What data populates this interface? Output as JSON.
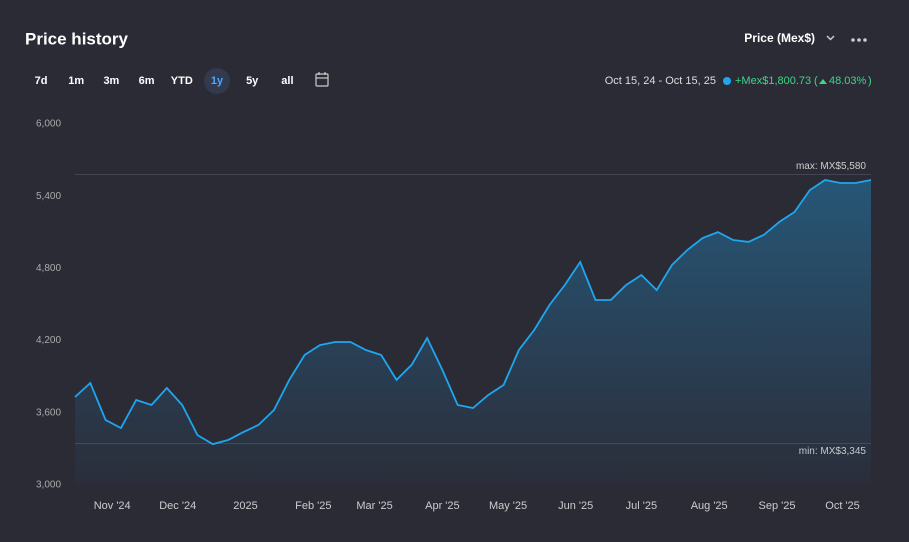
{
  "header": {
    "title": "Price history",
    "price_selector": "Price (Mex$)",
    "ranges": [
      "7d",
      "1m",
      "3m",
      "6m",
      "YTD",
      "1y",
      "5y",
      "all"
    ],
    "selected_range_index": 5,
    "date_range": "Oct 15, 24 - Oct 15, 25",
    "change": "+Mex$1,800.73",
    "change_percent": "48.03%"
  },
  "chart_data": {
    "type": "area",
    "color": "#1ea7f0",
    "x": [
      0,
      1,
      2,
      3,
      4,
      5,
      6,
      7,
      8,
      9,
      10,
      11,
      12,
      13,
      14,
      15,
      16,
      17,
      18,
      19,
      20,
      21,
      22,
      23,
      24,
      25,
      26,
      27,
      28,
      29,
      30,
      31,
      32,
      33,
      34,
      35,
      36,
      37,
      38,
      39,
      40,
      41,
      42,
      43,
      44,
      45,
      46,
      47,
      48,
      49,
      50,
      51,
      52
    ],
    "values": [
      3731,
      3848,
      3540,
      3474,
      3706,
      3665,
      3806,
      3665,
      3415,
      3340,
      3374,
      3440,
      3500,
      3623,
      3873,
      4080,
      4163,
      4188,
      4188,
      4122,
      4080,
      3873,
      4000,
      4222,
      3956,
      3665,
      3640,
      3748,
      3831,
      4122,
      4288,
      4496,
      4662,
      4853,
      4537,
      4537,
      4662,
      4745,
      4620,
      4828,
      4953,
      5053,
      5102,
      5036,
      5020,
      5078,
      5186,
      5269,
      5451,
      5535,
      5510,
      5510,
      5535
    ],
    "xlim": [
      0,
      52
    ],
    "xticks": [
      {
        "value": 2.43,
        "label": "Nov '24"
      },
      {
        "value": 6.71,
        "label": "Dec '24"
      },
      {
        "value": 11.14,
        "label": "2025"
      },
      {
        "value": 15.57,
        "label": "Feb '25"
      },
      {
        "value": 19.57,
        "label": "Mar '25"
      },
      {
        "value": 24,
        "label": "Apr '25"
      },
      {
        "value": 28.29,
        "label": "May '25"
      },
      {
        "value": 32.71,
        "label": "Jun '25"
      },
      {
        "value": 37,
        "label": "Jul '25"
      },
      {
        "value": 41.43,
        "label": "Aug '25"
      },
      {
        "value": 45.86,
        "label": "Sep '25"
      },
      {
        "value": 50.14,
        "label": "Oct '25"
      }
    ],
    "ylim": [
      3000,
      6000
    ],
    "yticks": [
      {
        "value": 3000,
        "label": "3,000"
      },
      {
        "value": 3600,
        "label": "3,600"
      },
      {
        "value": 4200,
        "label": "4,200"
      },
      {
        "value": 4800,
        "label": "4,800"
      },
      {
        "value": 5400,
        "label": "5,400"
      },
      {
        "value": 6000,
        "label": "6,000"
      }
    ],
    "max_line": {
      "value": 5580,
      "label": "max: MX$5,580"
    },
    "min_line": {
      "value": 3345,
      "label": "min: MX$3,345"
    }
  }
}
